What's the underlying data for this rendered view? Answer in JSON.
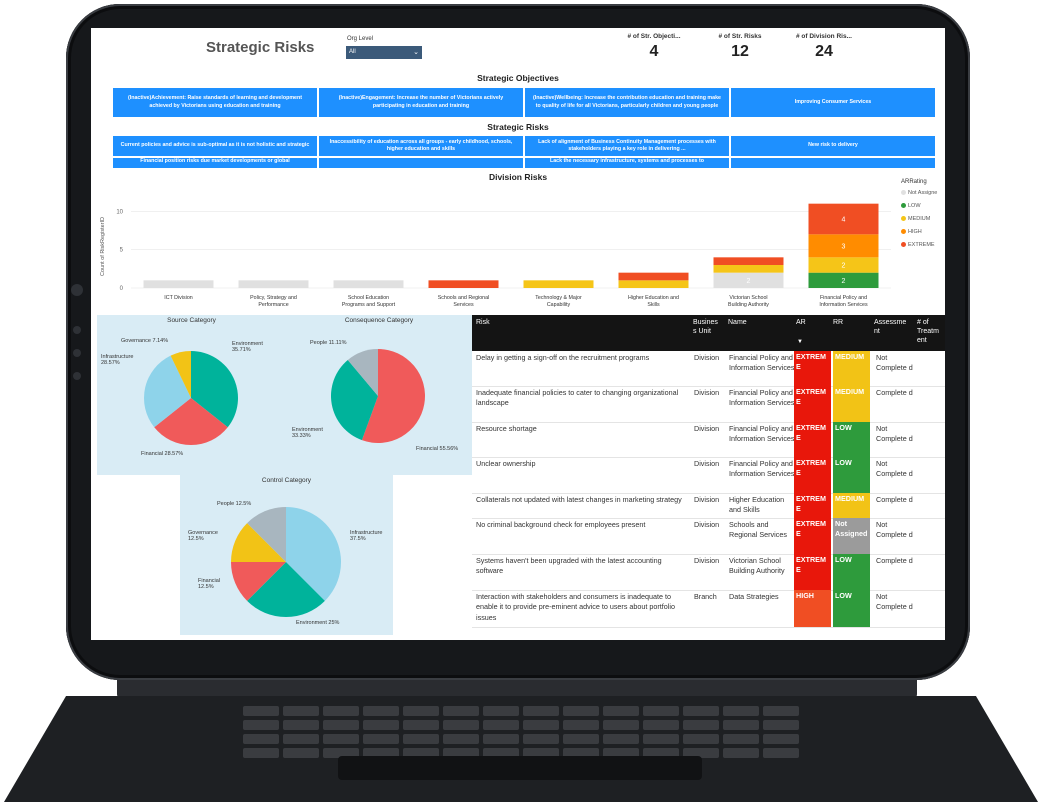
{
  "header": {
    "title": "Strategic Risks",
    "org_level_label": "Org Level",
    "org_level_value": "All"
  },
  "kpis": [
    {
      "label": "# of Str. Objecti...",
      "value": "4"
    },
    {
      "label": "# of Str. Risks",
      "value": "12"
    },
    {
      "label": "# of Division Ris...",
      "value": "24"
    }
  ],
  "objectives": {
    "title": "Strategic Objectives",
    "items": [
      "(Inactive)Achievement: Raise standards of learning and development achieved by Victorians using education and training",
      "(Inactive)Engagement: Increase the number of Victorians actively participating in education and training",
      "(Inactive)Wellbeing: Increase the contribution education and training make to quality of life for all Victorians, particularly children and young people",
      "Improving Consumer Services"
    ]
  },
  "str_risks": {
    "title": "Strategic Risks",
    "items": [
      "Current policies and advice is sub-optimal as it is not holistic and strategic",
      "Inaccessibility of education across all groups - early childhood, schools, higher education and skills",
      "Lack of alignment of Business Continuity Management processes with stakeholders playing a key role in delivering ...",
      "New risk to delivery"
    ],
    "items_row2": [
      "Financial position risks due market developments or global",
      "",
      "Lack the necessary infrastructure, systems and processes to",
      ""
    ]
  },
  "chart_data": {
    "type": "bar",
    "title": "Division Risks",
    "ylabel": "Count of RiskRegisterID",
    "xlabel": "",
    "ylim": [
      0,
      12
    ],
    "yticks": [
      0,
      5,
      10
    ],
    "categories": [
      "ICT Division",
      "Policy, Strategy and Performance",
      "School Education Programs and Support",
      "Schools and Regional Services",
      "Technology & Major Capability",
      "Higher Education and Skills",
      "Victorian School Building Authority",
      "Financial Policy and Information Services"
    ],
    "legend_title": "ARRating",
    "legend_position": "right",
    "series": [
      {
        "name": "Not Assigned",
        "color": "#e0e0e0",
        "values": [
          1,
          1,
          1,
          0,
          0,
          0,
          2,
          0
        ]
      },
      {
        "name": "LOW",
        "color": "#2e9b3c",
        "values": [
          0,
          0,
          0,
          0,
          0,
          0,
          0,
          2
        ]
      },
      {
        "name": "MEDIUM",
        "color": "#f5c518",
        "values": [
          0,
          0,
          0,
          0,
          1,
          1,
          1,
          2
        ]
      },
      {
        "name": "HIGH",
        "color": "#ff8c00",
        "values": [
          0,
          0,
          0,
          0,
          0,
          0,
          0,
          3
        ]
      },
      {
        "name": "EXTREME",
        "color": "#f04e23",
        "values": [
          0,
          0,
          0,
          1,
          0,
          1,
          1,
          4
        ]
      }
    ],
    "legend_labels": [
      "Not Assigne",
      "LOW",
      "MEDIUM",
      "HIGH",
      "EXTREME"
    ]
  },
  "pies": {
    "source": {
      "title": "Source Category",
      "slices": [
        {
          "name": "Environment",
          "label": "Environment 35.71%",
          "value": 35.71,
          "color": "#00b39b"
        },
        {
          "name": "Financial",
          "label": "Financial 28.57%",
          "value": 28.57,
          "color": "#f05a5a"
        },
        {
          "name": "Infrastructure",
          "label": "Infrastructure 28.57%",
          "value": 28.57,
          "color": "#8ed3ea"
        },
        {
          "name": "Governance",
          "label": "Governance 7.14%",
          "value": 7.14,
          "color": "#f2c316"
        }
      ]
    },
    "consequence": {
      "title": "Consequence Category",
      "slices": [
        {
          "name": "Financial",
          "label": "Financial 55.56%",
          "value": 55.56,
          "color": "#f05a5a"
        },
        {
          "name": "Environment",
          "label": "Environment 33.33%",
          "value": 33.33,
          "color": "#00b39b"
        },
        {
          "name": "People",
          "label": "People 11.11%",
          "value": 11.11,
          "color": "#a8b6bf"
        }
      ]
    },
    "control": {
      "title": "Control Category",
      "slices": [
        {
          "name": "Infrastructure",
          "label": "Infrastructure 37.5%",
          "value": 37.5,
          "color": "#8ed3ea"
        },
        {
          "name": "Environment",
          "label": "Environment 25%",
          "value": 25,
          "color": "#00b39b"
        },
        {
          "name": "Financial",
          "label": "Financial 12.5%",
          "value": 12.5,
          "color": "#f05a5a"
        },
        {
          "name": "Governance",
          "label": "Governance 12.5%",
          "value": 12.5,
          "color": "#f2c316"
        },
        {
          "name": "People",
          "label": "People 12.5%",
          "value": 12.5,
          "color": "#a8b6bf"
        }
      ]
    }
  },
  "table": {
    "headers": [
      "Risk",
      "Busines s Unit",
      "Name",
      "AR",
      "RR",
      "Assessme nt",
      "# of Treatm ent"
    ],
    "rows": [
      {
        "risk": "Delay in getting a sign-off on the recruitment programs",
        "unit": "Division",
        "name": "Financial Policy and Information Services",
        "ar": "EXTREM E",
        "ar_color": "#e8170b",
        "rr": "MEDIUM",
        "rr_color": "#f2c316",
        "assess": "Not Complete d"
      },
      {
        "risk": "Inadequate financial policies to cater to changing organizational landscape",
        "unit": "Division",
        "name": "Financial Policy and Information Services",
        "ar": "EXTREM E",
        "ar_color": "#e8170b",
        "rr": "MEDIUM",
        "rr_color": "#f2c316",
        "assess": "Complete d"
      },
      {
        "risk": "Resource shortage",
        "unit": "Division",
        "name": "Financial Policy and Information Services",
        "ar": "EXTREM E",
        "ar_color": "#e8170b",
        "rr": "LOW",
        "rr_color": "#2e9b3c",
        "assess": "Not Complete d"
      },
      {
        "risk": "Unclear ownership",
        "unit": "Division",
        "name": "Financial Policy and Information Services",
        "ar": "EXTREM E",
        "ar_color": "#e8170b",
        "rr": "LOW",
        "rr_color": "#2e9b3c",
        "assess": "Not Complete d"
      },
      {
        "risk": "Collaterals not updated with latest changes in marketing strategy",
        "unit": "Division",
        "name": "Higher Education and Skills",
        "ar": "EXTREM E",
        "ar_color": "#e8170b",
        "rr": "MEDIUM",
        "rr_color": "#f2c316",
        "assess": "Complete d"
      },
      {
        "risk": "No criminal background check for employees present",
        "unit": "Division",
        "name": "Schools and Regional Services",
        "ar": "EXTREM E",
        "ar_color": "#e8170b",
        "rr": "Not Assigned",
        "rr_color": "#9b9b9b",
        "assess": "Not Complete d"
      },
      {
        "risk": "Systems haven't been upgraded with the latest accounting software",
        "unit": "Division",
        "name": "Victorian School Building Authority",
        "ar": "EXTREM E",
        "ar_color": "#e8170b",
        "rr": "LOW",
        "rr_color": "#2e9b3c",
        "assess": "Complete d"
      },
      {
        "risk": "Interaction with stakeholders and consumers is inadequate to enable it to provide pre-eminent advice to users about portfolio issues",
        "unit": "Branch",
        "name": "Data Strategies",
        "ar": "HIGH",
        "ar_color": "#f04e23",
        "rr": "LOW",
        "rr_color": "#2e9b3c",
        "assess": "Not Complete d"
      }
    ]
  }
}
